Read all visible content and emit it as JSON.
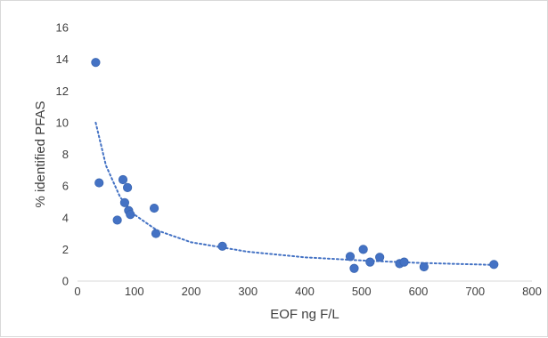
{
  "chart_data": {
    "type": "scatter",
    "title": "",
    "xlabel": "EOF ng F/L",
    "ylabel": "% identified PFAS",
    "xlim": [
      0,
      800
    ],
    "ylim": [
      0,
      16
    ],
    "x_ticks": [
      0,
      100,
      200,
      300,
      400,
      500,
      600,
      700,
      800
    ],
    "y_ticks": [
      0,
      2,
      4,
      6,
      8,
      10,
      12,
      14,
      16
    ],
    "grid": false,
    "legend": "none",
    "series": [
      {
        "marker_color": "#4472c4",
        "points": [
          {
            "x": 32,
            "y": 13.8
          },
          {
            "x": 38,
            "y": 6.2
          },
          {
            "x": 70,
            "y": 3.85
          },
          {
            "x": 80,
            "y": 6.4
          },
          {
            "x": 83,
            "y": 4.95
          },
          {
            "x": 88,
            "y": 5.9
          },
          {
            "x": 90,
            "y": 4.45
          },
          {
            "x": 93,
            "y": 4.2
          },
          {
            "x": 135,
            "y": 4.6
          },
          {
            "x": 138,
            "y": 3.0
          },
          {
            "x": 255,
            "y": 2.2
          },
          {
            "x": 480,
            "y": 1.55
          },
          {
            "x": 487,
            "y": 0.8
          },
          {
            "x": 503,
            "y": 2.0
          },
          {
            "x": 515,
            "y": 1.2
          },
          {
            "x": 532,
            "y": 1.5
          },
          {
            "x": 567,
            "y": 1.1
          },
          {
            "x": 575,
            "y": 1.2
          },
          {
            "x": 610,
            "y": 0.9
          },
          {
            "x": 733,
            "y": 1.05
          }
        ]
      }
    ],
    "trendline": {
      "style": "dotted",
      "color": "#4472c4",
      "x_range": [
        32,
        733
      ],
      "points": [
        {
          "x": 32,
          "y": 10.0
        },
        {
          "x": 50,
          "y": 7.3
        },
        {
          "x": 75,
          "y": 5.3
        },
        {
          "x": 100,
          "y": 4.2
        },
        {
          "x": 140,
          "y": 3.2
        },
        {
          "x": 200,
          "y": 2.45
        },
        {
          "x": 300,
          "y": 1.85
        },
        {
          "x": 400,
          "y": 1.5
        },
        {
          "x": 500,
          "y": 1.3
        },
        {
          "x": 600,
          "y": 1.15
        },
        {
          "x": 733,
          "y": 1.02
        }
      ]
    }
  }
}
